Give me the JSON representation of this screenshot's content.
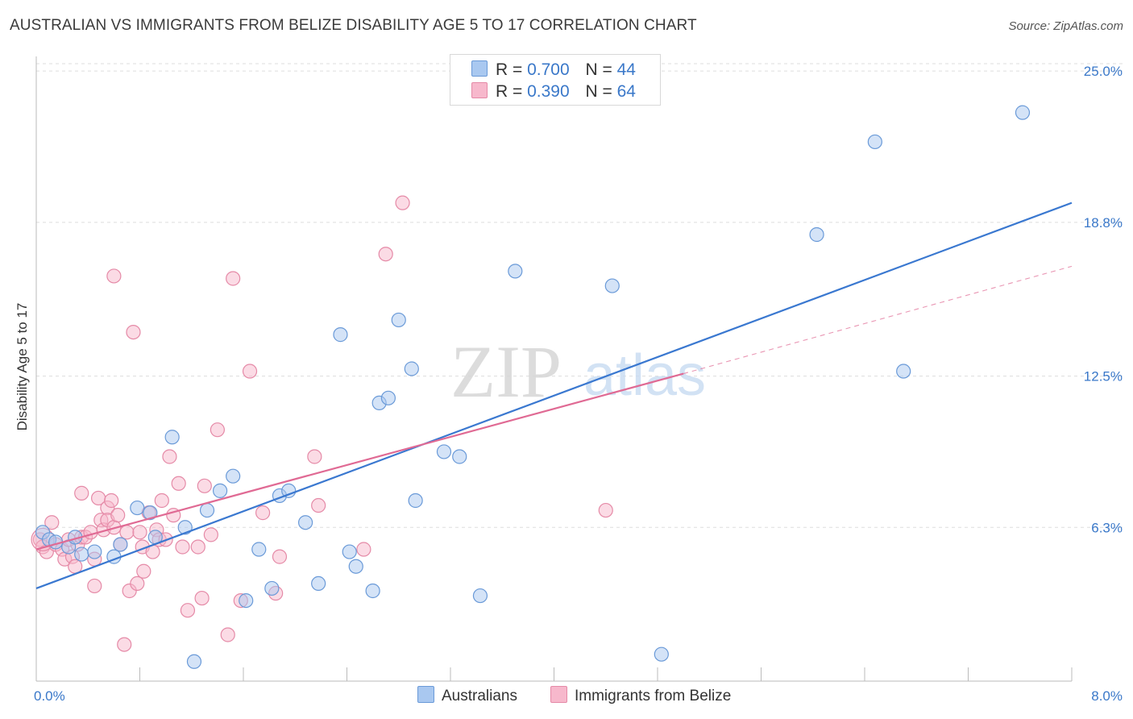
{
  "header": {
    "title": "AUSTRALIAN VS IMMIGRANTS FROM BELIZE DISABILITY AGE 5 TO 17 CORRELATION CHART",
    "source": "Source: ZipAtlas.com"
  },
  "watermark": {
    "zip": "ZIP",
    "atlas": "atlas"
  },
  "legend": {
    "rows": [
      {
        "r_label": "R =",
        "r_value": "0.700",
        "n_label": "N =",
        "n_value": "44"
      },
      {
        "r_label": "R =",
        "r_value": "0.390",
        "n_label": "N =",
        "n_value": "64"
      }
    ]
  },
  "bottom_legend": {
    "series1": "Australians",
    "series2": "Immigrants from Belize"
  },
  "colors": {
    "blue_fill": "#a9c8f0",
    "blue_stroke": "#6a9ad8",
    "blue_line": "#3a78d0",
    "pink_fill": "#f7b8cc",
    "pink_stroke": "#e58aa7",
    "pink_line": "#e06a94",
    "tick_label": "#3a78c9",
    "grid": "#dddddd"
  },
  "chart_data": {
    "type": "scatter",
    "title": "AUSTRALIAN VS IMMIGRANTS FROM BELIZE DISABILITY AGE 5 TO 17 CORRELATION CHART",
    "xlabel": "",
    "ylabel": "Disability Age 5 to 17",
    "xlim": [
      0,
      8
    ],
    "ylim": [
      0,
      25.6
    ],
    "x_tick_labels": [
      "0.0%",
      "8.0%"
    ],
    "y_ticks": [
      6.3,
      12.5,
      18.8,
      25.0
    ],
    "y_tick_labels": [
      "6.3%",
      "12.5%",
      "18.8%",
      "25.0%"
    ],
    "grid": true,
    "legend_position": "top-center",
    "series": [
      {
        "name": "Australians",
        "r": 0.7,
        "n": 44,
        "trend": {
          "x": [
            0.0,
            8.0
          ],
          "y": [
            3.8,
            19.6
          ]
        },
        "points": [
          [
            0.05,
            6.1
          ],
          [
            0.1,
            5.8
          ],
          [
            0.15,
            5.7
          ],
          [
            0.25,
            5.5
          ],
          [
            0.35,
            5.2
          ],
          [
            0.45,
            5.3
          ],
          [
            0.65,
            5.6
          ],
          [
            0.78,
            7.1
          ],
          [
            0.88,
            6.9
          ],
          [
            0.92,
            5.9
          ],
          [
            1.05,
            10.0
          ],
          [
            1.15,
            6.3
          ],
          [
            1.32,
            7.0
          ],
          [
            1.42,
            7.8
          ],
          [
            1.52,
            8.4
          ],
          [
            1.62,
            3.3
          ],
          [
            1.72,
            5.4
          ],
          [
            1.82,
            3.8
          ],
          [
            1.88,
            7.6
          ],
          [
            1.95,
            7.8
          ],
          [
            2.08,
            6.5
          ],
          [
            2.18,
            4.0
          ],
          [
            2.35,
            14.2
          ],
          [
            2.42,
            5.3
          ],
          [
            2.47,
            4.7
          ],
          [
            2.6,
            3.7
          ],
          [
            2.65,
            11.4
          ],
          [
            2.72,
            11.6
          ],
          [
            2.8,
            14.8
          ],
          [
            2.9,
            12.8
          ],
          [
            2.93,
            7.4
          ],
          [
            3.15,
            9.4
          ],
          [
            3.27,
            9.2
          ],
          [
            3.43,
            3.5
          ],
          [
            3.7,
            16.8
          ],
          [
            4.45,
            16.2
          ],
          [
            4.83,
            1.1
          ],
          [
            6.03,
            18.3
          ],
          [
            6.48,
            22.1
          ],
          [
            6.7,
            12.7
          ],
          [
            7.62,
            23.3
          ],
          [
            1.22,
            0.8
          ],
          [
            0.6,
            5.1
          ],
          [
            0.3,
            5.9
          ]
        ]
      },
      {
        "name": "Immigrants from Belize",
        "r": 0.39,
        "n": 64,
        "trend": {
          "x": [
            0.0,
            5.0
          ],
          "y": [
            5.4,
            12.6
          ]
        },
        "trend_ext": {
          "x": [
            5.0,
            8.0
          ],
          "y": [
            12.6,
            17.0
          ]
        },
        "points": [
          [
            0.03,
            5.8
          ],
          [
            0.05,
            5.5
          ],
          [
            0.08,
            5.3
          ],
          [
            0.12,
            6.5
          ],
          [
            0.15,
            5.6
          ],
          [
            0.2,
            5.4
          ],
          [
            0.22,
            5.0
          ],
          [
            0.25,
            5.8
          ],
          [
            0.28,
            5.1
          ],
          [
            0.3,
            4.7
          ],
          [
            0.32,
            5.6
          ],
          [
            0.35,
            5.9
          ],
          [
            0.35,
            7.7
          ],
          [
            0.38,
            5.9
          ],
          [
            0.42,
            6.1
          ],
          [
            0.45,
            5.0
          ],
          [
            0.45,
            3.9
          ],
          [
            0.48,
            7.5
          ],
          [
            0.5,
            6.6
          ],
          [
            0.52,
            6.2
          ],
          [
            0.55,
            7.1
          ],
          [
            0.55,
            6.6
          ],
          [
            0.58,
            7.4
          ],
          [
            0.6,
            6.3
          ],
          [
            0.6,
            16.6
          ],
          [
            0.63,
            6.8
          ],
          [
            0.65,
            5.6
          ],
          [
            0.68,
            1.5
          ],
          [
            0.7,
            6.1
          ],
          [
            0.72,
            3.7
          ],
          [
            0.75,
            14.3
          ],
          [
            0.78,
            4.0
          ],
          [
            0.8,
            6.1
          ],
          [
            0.82,
            5.5
          ],
          [
            0.83,
            4.5
          ],
          [
            0.87,
            6.9
          ],
          [
            0.9,
            5.3
          ],
          [
            0.93,
            6.2
          ],
          [
            0.95,
            5.8
          ],
          [
            0.97,
            7.4
          ],
          [
            1.0,
            5.8
          ],
          [
            1.03,
            9.2
          ],
          [
            1.06,
            6.8
          ],
          [
            1.1,
            8.1
          ],
          [
            1.13,
            5.5
          ],
          [
            1.17,
            2.9
          ],
          [
            1.25,
            5.5
          ],
          [
            1.28,
            3.4
          ],
          [
            1.3,
            8.0
          ],
          [
            1.35,
            6.0
          ],
          [
            1.4,
            10.3
          ],
          [
            1.48,
            1.9
          ],
          [
            1.52,
            16.5
          ],
          [
            1.58,
            3.3
          ],
          [
            1.65,
            12.7
          ],
          [
            1.75,
            6.9
          ],
          [
            1.85,
            3.6
          ],
          [
            1.88,
            5.1
          ],
          [
            2.15,
            9.2
          ],
          [
            2.18,
            7.2
          ],
          [
            2.53,
            5.4
          ],
          [
            2.7,
            17.5
          ],
          [
            2.83,
            19.6
          ],
          [
            4.4,
            7.0
          ]
        ]
      }
    ]
  }
}
